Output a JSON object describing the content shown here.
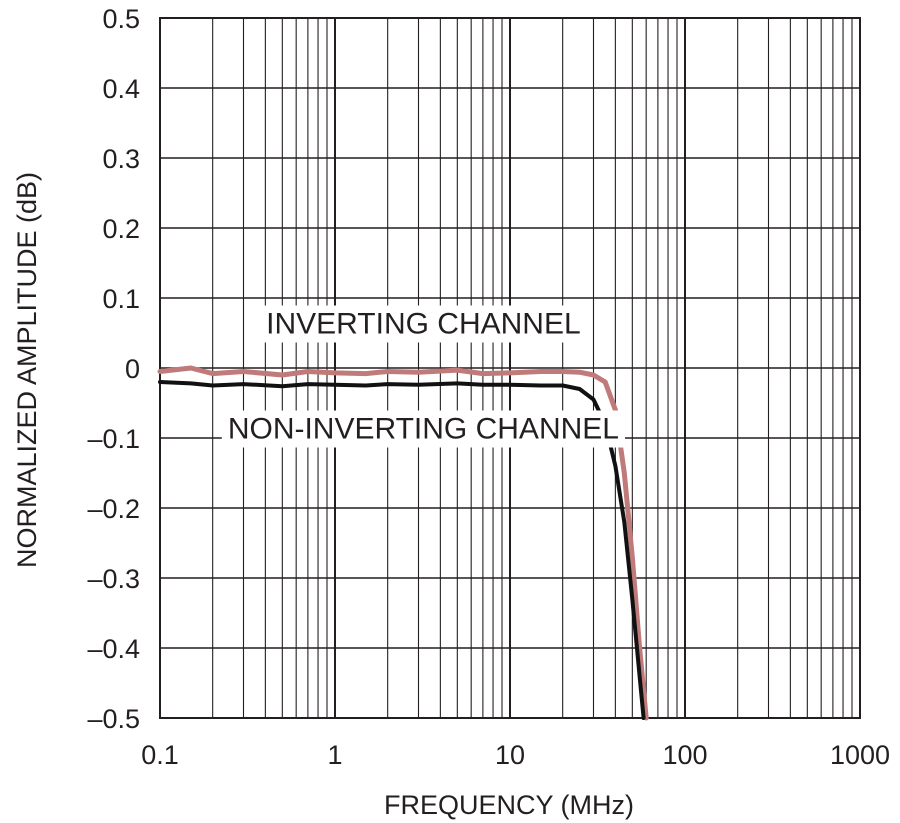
{
  "chart_data": {
    "type": "line",
    "xlabel": "FREQUENCY (MHz)",
    "ylabel": "NORMALIZED AMPLITUDE (dB)",
    "xscale": "log",
    "xlim": [
      0.1,
      1000
    ],
    "ylim": [
      -0.5,
      0.5
    ],
    "grid": true,
    "x_ticks": [
      0.1,
      1,
      10,
      100,
      1000
    ],
    "x_tick_labels": [
      "0.1",
      "1",
      "10",
      "100",
      "1000"
    ],
    "y_ticks": [
      0.5,
      0.4,
      0.3,
      0.2,
      0.1,
      0,
      -0.1,
      -0.2,
      -0.3,
      -0.4,
      -0.5
    ],
    "y_tick_labels": [
      "0.5",
      "0.4",
      "0.3",
      "0.2",
      "0.1",
      "0",
      "–0.1",
      "–0.2",
      "–0.3",
      "–0.4",
      "–0.5"
    ],
    "series": [
      {
        "name": "INVERTING CHANNEL",
        "color": "#c07a7a",
        "x": [
          0.1,
          0.15,
          0.2,
          0.3,
          0.5,
          0.7,
          1,
          1.5,
          2,
          3,
          5,
          7,
          10,
          15,
          20,
          25,
          30,
          35,
          40,
          45,
          50,
          55,
          60
        ],
        "y": [
          -0.005,
          0.0,
          -0.008,
          -0.005,
          -0.01,
          -0.005,
          -0.007,
          -0.008,
          -0.005,
          -0.006,
          -0.003,
          -0.008,
          -0.007,
          -0.005,
          -0.005,
          -0.006,
          -0.01,
          -0.02,
          -0.06,
          -0.15,
          -0.27,
          -0.4,
          -0.5
        ]
      },
      {
        "name": "NON-INVERTING CHANNEL",
        "color": "#111111",
        "x": [
          0.1,
          0.15,
          0.2,
          0.3,
          0.5,
          0.7,
          1,
          1.5,
          2,
          3,
          5,
          7,
          10,
          15,
          20,
          25,
          30,
          35,
          40,
          45,
          50,
          55,
          58
        ],
        "y": [
          -0.02,
          -0.022,
          -0.025,
          -0.023,
          -0.026,
          -0.023,
          -0.024,
          -0.025,
          -0.023,
          -0.024,
          -0.022,
          -0.024,
          -0.024,
          -0.025,
          -0.025,
          -0.03,
          -0.045,
          -0.08,
          -0.14,
          -0.22,
          -0.33,
          -0.44,
          -0.5
        ]
      }
    ],
    "annotations": [
      {
        "text": "INVERTING CHANNEL",
        "x": 3.2,
        "y": 0.065
      },
      {
        "text": "NON-INVERTING CHANNEL",
        "x": 3.2,
        "y": -0.085
      }
    ]
  }
}
